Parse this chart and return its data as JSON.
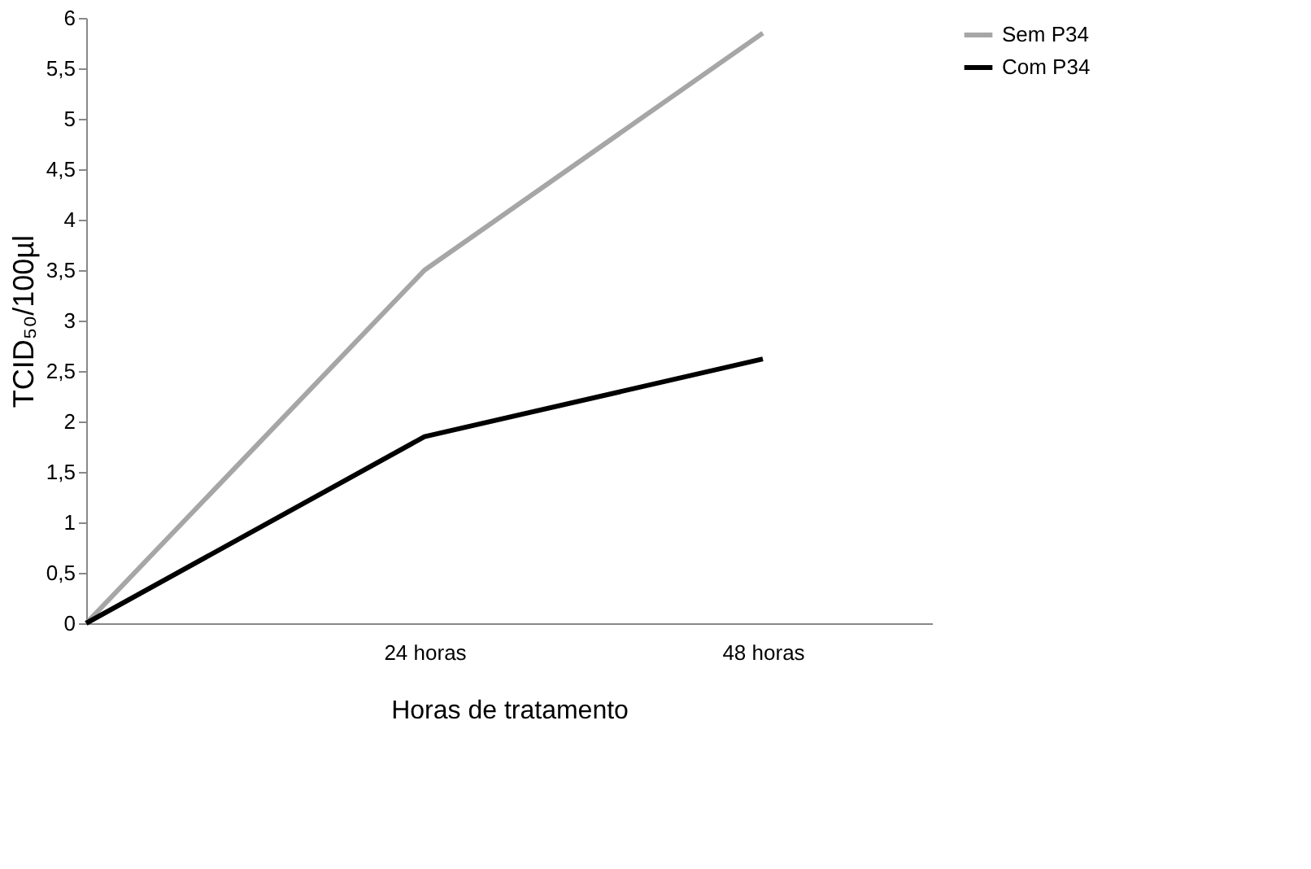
{
  "chart_data": {
    "type": "line",
    "xlabel": "Horas de tratamento",
    "ylabel": "TCID₅₀/100µl",
    "categories": [
      null,
      "24 horas",
      "48 horas"
    ],
    "series": [
      {
        "name": "Sem P34",
        "color": "#a6a6a6",
        "values": [
          0,
          3.5,
          5.85
        ]
      },
      {
        "name": "Com P34",
        "color": "#000000",
        "values": [
          0,
          1.85,
          2.62
        ]
      }
    ],
    "ylim": [
      0,
      6
    ],
    "yticks": [
      0,
      {
        "value": 0.5,
        "label": "0,5"
      },
      1,
      {
        "value": 1.5,
        "label": "1,5"
      },
      2,
      {
        "value": 2.5,
        "label": "2,5"
      },
      3,
      {
        "value": 3.5,
        "label": "3,5"
      },
      4,
      {
        "value": 4.5,
        "label": "4,5"
      },
      5,
      {
        "value": 5.5,
        "label": "5,5"
      },
      6
    ],
    "grid": false,
    "legend": "right",
    "marker": "none",
    "line_style": "solid"
  }
}
